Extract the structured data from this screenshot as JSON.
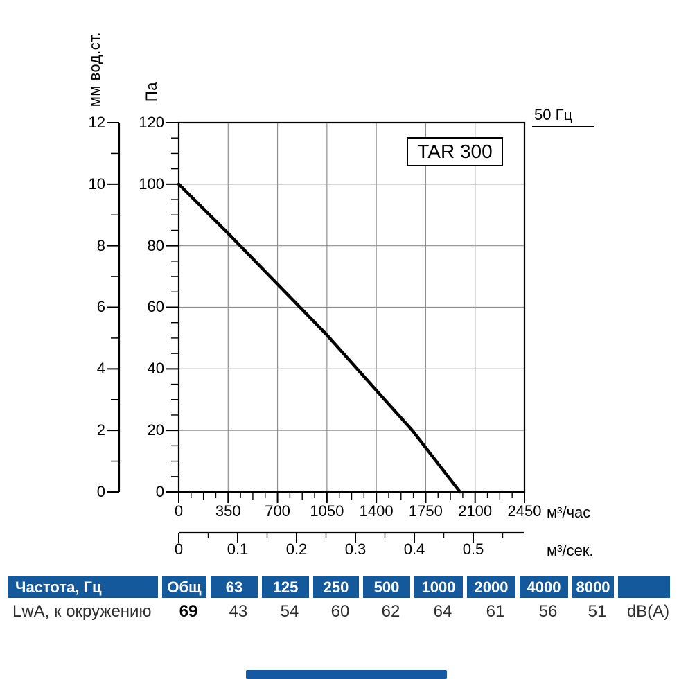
{
  "meta": {
    "model": "TAR 300",
    "frequency_label": "50 Гц"
  },
  "chart": {
    "y_axis_mm": {
      "unit": "мм вод.ст.",
      "labels": [
        "12",
        "10",
        "8",
        "6",
        "4",
        "2",
        "0"
      ]
    },
    "y_axis_pa": {
      "unit": "Па",
      "labels": [
        "120",
        "100",
        "80",
        "60",
        "40",
        "20",
        "0"
      ]
    },
    "x_axis_hour": {
      "unit": "м³/час",
      "labels": [
        "0",
        "350",
        "700",
        "1050",
        "1400",
        "1750",
        "2100",
        "2450"
      ]
    },
    "x_axis_sec": {
      "unit": "м³/сек.",
      "labels": [
        "0",
        "0.1",
        "0.2",
        "0.3",
        "0.4",
        "0.5"
      ]
    }
  },
  "chart_data": {
    "type": "line",
    "title": "TAR 300",
    "xlabel": "м³/час",
    "ylabel": "Па",
    "xlim": [
      0,
      2450
    ],
    "ylim": [
      0,
      120
    ],
    "x2label": "м³/сек.",
    "x2lim": [
      0,
      0.587
    ],
    "y2label": "мм вод.ст.",
    "y2lim": [
      0,
      12
    ],
    "grid": true,
    "x_major_step": 350,
    "y_major_step": 20,
    "series": [
      {
        "name": "50 Гц",
        "points": [
          [
            0,
            100
          ],
          [
            350,
            84
          ],
          [
            700,
            67.5
          ],
          [
            1050,
            51
          ],
          [
            1400,
            33
          ],
          [
            1655,
            20
          ],
          [
            1993,
            0
          ]
        ]
      }
    ]
  },
  "table": {
    "header": [
      "Частота, Гц",
      "Общ",
      "63",
      "125",
      "250",
      "500",
      "1000",
      "2000",
      "4000",
      "8000",
      ""
    ],
    "row": [
      "LwA, к окружению",
      "69",
      "43",
      "54",
      "60",
      "62",
      "64",
      "61",
      "56",
      "51",
      "dB(A)"
    ]
  }
}
